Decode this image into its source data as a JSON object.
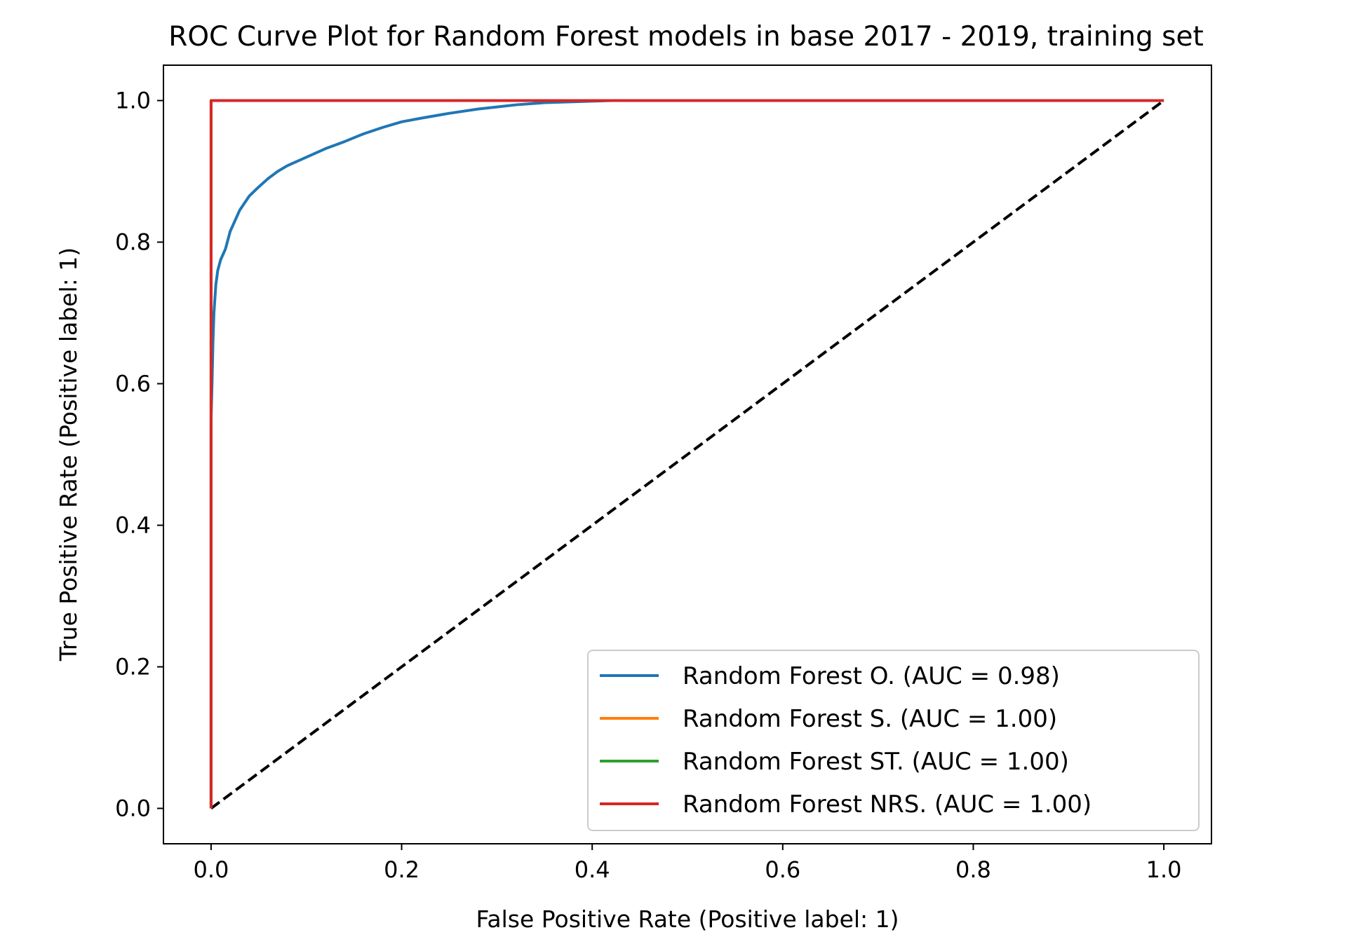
{
  "chart_data": {
    "type": "line",
    "title": "ROC Curve Plot for Random Forest models in base 2017 - 2019, training set",
    "xlabel": "False Positive Rate (Positive label: 1)",
    "ylabel": "True Positive Rate (Positive label: 1)",
    "xlim": [
      -0.05,
      1.05
    ],
    "ylim": [
      -0.05,
      1.05
    ],
    "xticks": [
      "0.0",
      "0.2",
      "0.4",
      "0.6",
      "0.8",
      "1.0"
    ],
    "yticks": [
      "0.0",
      "0.2",
      "0.4",
      "0.6",
      "0.8",
      "1.0"
    ],
    "grid": false,
    "legend_position": "lower right",
    "series": [
      {
        "name": "Random Forest O. (AUC = 0.98)",
        "color": "#1f77b4",
        "x": [
          0,
          0,
          0.001,
          0.002,
          0.003,
          0.004,
          0.005,
          0.007,
          0.01,
          0.015,
          0.02,
          0.025,
          0.03,
          0.04,
          0.05,
          0.06,
          0.07,
          0.08,
          0.1,
          0.12,
          0.14,
          0.16,
          0.18,
          0.2,
          0.22,
          0.25,
          0.28,
          0.3,
          0.32,
          0.35,
          0.42,
          1.0
        ],
        "y": [
          0,
          0.55,
          0.6,
          0.66,
          0.7,
          0.72,
          0.74,
          0.76,
          0.775,
          0.79,
          0.815,
          0.83,
          0.845,
          0.865,
          0.878,
          0.89,
          0.9,
          0.908,
          0.92,
          0.932,
          0.942,
          0.953,
          0.962,
          0.97,
          0.975,
          0.982,
          0.988,
          0.991,
          0.994,
          0.997,
          1.0,
          1.0
        ]
      },
      {
        "name": "Random Forest S. (AUC = 1.00)",
        "color": "#ff7f0e",
        "x": [
          0,
          0,
          1.0
        ],
        "y": [
          0,
          1.0,
          1.0
        ]
      },
      {
        "name": "Random Forest ST. (AUC = 1.00)",
        "color": "#2ca02c",
        "x": [
          0,
          0,
          1.0
        ],
        "y": [
          0,
          1.0,
          1.0
        ]
      },
      {
        "name": "Random Forest NRS. (AUC = 1.00)",
        "color": "#d62728",
        "x": [
          0,
          0,
          1.0
        ],
        "y": [
          0,
          1.0,
          1.0
        ]
      }
    ],
    "reference_line": {
      "style": "dashed",
      "color": "#000000",
      "x": [
        0,
        1
      ],
      "y": [
        0,
        1
      ]
    }
  }
}
